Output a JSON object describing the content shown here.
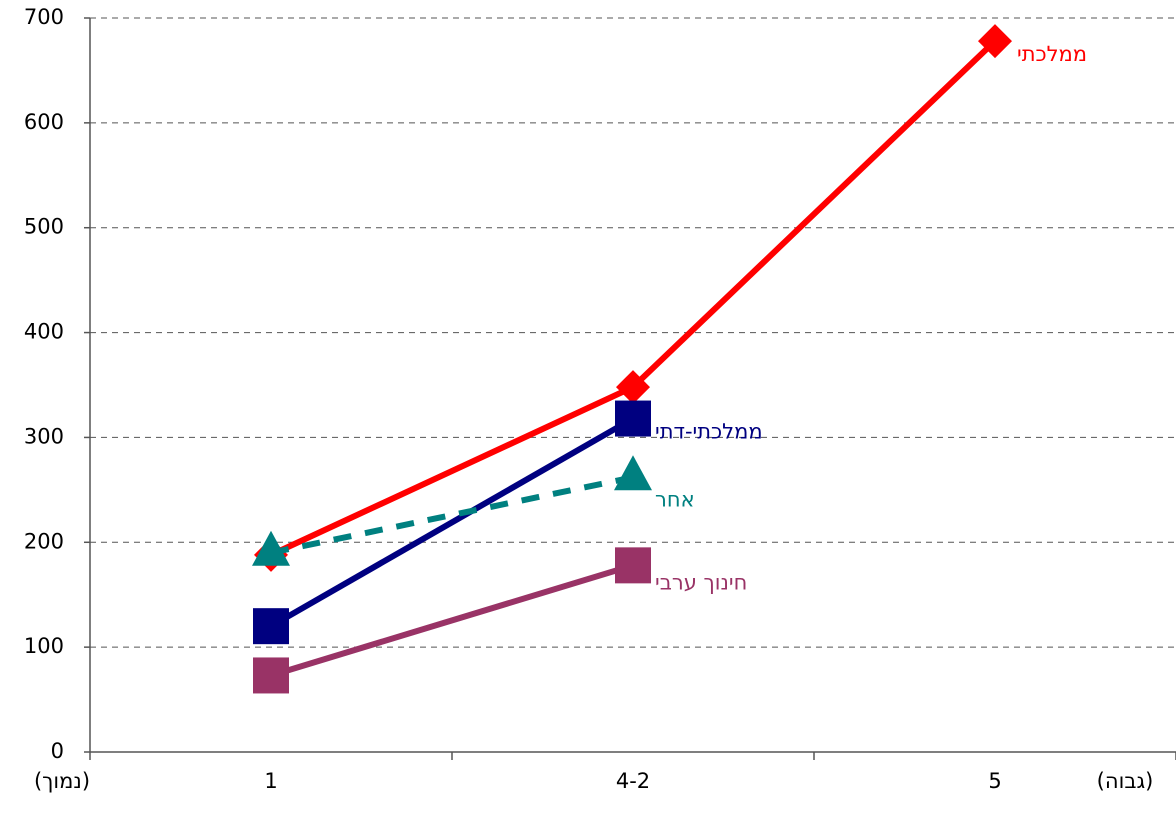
{
  "chart_data": {
    "type": "line",
    "categories": [
      "1",
      "4-2",
      "5"
    ],
    "x_low_label": "(נמוך)",
    "x_high_label": "(גבוה)",
    "ylim": [
      0,
      700
    ],
    "yticks": [
      0,
      100,
      200,
      300,
      400,
      500,
      600,
      700
    ],
    "grid": true,
    "series": [
      {
        "name": "ממלכתי",
        "color": "#ff0000",
        "marker": "diamond",
        "dash": false,
        "values": [
          188,
          348,
          678
        ]
      },
      {
        "name": "ממלכתי-דתי",
        "color": "#000080",
        "marker": "square",
        "dash": false,
        "values": [
          120,
          318,
          null
        ]
      },
      {
        "name": "אחר",
        "color": "#008080",
        "marker": "triangle",
        "dash": true,
        "values": [
          190,
          262,
          null
        ]
      },
      {
        "name": "חינוך ערבי",
        "color": "#993366",
        "marker": "square",
        "dash": false,
        "values": [
          73,
          178,
          null
        ]
      }
    ]
  }
}
